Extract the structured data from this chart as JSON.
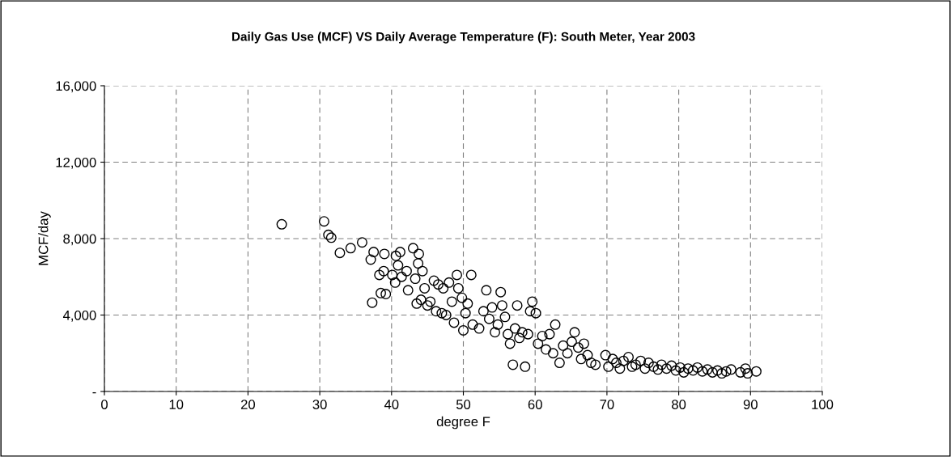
{
  "chart_data": {
    "type": "scatter",
    "title": "Daily Gas Use (MCF) VS Daily Average Temperature (F): South Meter, Year 2003",
    "xlabel": "degree F",
    "ylabel": "MCF/day",
    "x": [
      24.7,
      30.6,
      31.2,
      31.6,
      32.8,
      34.3,
      35.9,
      37.1,
      37.3,
      37.5,
      38.3,
      38.5,
      38.9,
      39.0,
      39.2,
      40.1,
      40.5,
      40.6,
      40.9,
      41.2,
      41.4,
      42.1,
      42.3,
      43.0,
      43.3,
      43.5,
      43.7,
      43.8,
      44.1,
      44.3,
      44.6,
      45.0,
      45.4,
      45.9,
      46.2,
      46.5,
      47.0,
      47.2,
      47.6,
      48.0,
      48.4,
      48.7,
      49.1,
      49.3,
      49.8,
      50.0,
      50.3,
      50.6,
      51.1,
      51.3,
      52.2,
      52.8,
      53.2,
      53.6,
      54.0,
      54.4,
      54.8,
      55.2,
      55.4,
      55.8,
      56.2,
      56.5,
      56.9,
      57.2,
      57.5,
      57.8,
      58.2,
      58.6,
      59.0,
      59.3,
      59.6,
      60.1,
      60.4,
      61.0,
      61.5,
      62.0,
      62.5,
      62.8,
      63.4,
      63.9,
      64.5,
      65.1,
      65.5,
      66.0,
      66.4,
      66.8,
      67.3,
      67.8,
      68.4,
      69.8,
      70.2,
      70.8,
      71.3,
      71.8,
      72.3,
      73.0,
      73.5,
      74.0,
      74.7,
      75.3,
      75.8,
      76.5,
      77.1,
      77.6,
      78.3,
      79.0,
      79.6,
      80.2,
      80.7,
      81.3,
      82.0,
      82.6,
      83.3,
      84.0,
      84.7,
      85.4,
      86.0,
      86.6,
      87.3,
      88.6,
      89.3,
      89.6,
      90.8
    ],
    "series": [
      {
        "color": "#000000",
        "values": [
          8750,
          8900,
          8200,
          8050,
          7250,
          7500,
          7800,
          6900,
          4650,
          7300,
          6100,
          5150,
          6300,
          7200,
          5100,
          6100,
          5700,
          7100,
          6600,
          7300,
          6000,
          6300,
          5300,
          7500,
          5900,
          4600,
          6700,
          7200,
          4800,
          6300,
          5400,
          4500,
          4700,
          5800,
          4200,
          5600,
          4100,
          5400,
          4000,
          5700,
          4700,
          3600,
          6100,
          5400,
          4900,
          3200,
          4100,
          4600,
          6100,
          3500,
          3300,
          4200,
          5300,
          3800,
          4400,
          3100,
          3500,
          5200,
          4500,
          3900,
          3000,
          2500,
          1400,
          3300,
          4500,
          2800,
          3100,
          1300,
          3000,
          4200,
          4700,
          4100,
          2500,
          2900,
          2200,
          3000,
          2000,
          3500,
          1500,
          2400,
          2000,
          2600,
          3100,
          2300,
          1700,
          2500,
          1900,
          1500,
          1400,
          1900,
          1300,
          1700,
          1500,
          1200,
          1600,
          1800,
          1300,
          1400,
          1600,
          1200,
          1500,
          1300,
          1150,
          1400,
          1200,
          1350,
          1100,
          1250,
          1000,
          1200,
          1100,
          1250,
          1050,
          1150,
          1000,
          1100,
          950,
          1050,
          1150,
          1000,
          1200,
          950,
          1050
        ]
      }
    ],
    "xlim": [
      0,
      100
    ],
    "xticks": [
      0,
      10,
      20,
      30,
      40,
      50,
      60,
      70,
      80,
      90,
      100
    ],
    "ylim": [
      0,
      16000
    ],
    "yticks": [
      {
        "value": 0,
        "label": "-"
      },
      {
        "value": 4000,
        "label": "4,000"
      },
      {
        "value": 8000,
        "label": "8,000"
      },
      {
        "value": 12000,
        "label": "12,000"
      },
      {
        "value": 16000,
        "label": "16,000"
      }
    ],
    "grid": true,
    "marker": "circle",
    "legend": false
  }
}
